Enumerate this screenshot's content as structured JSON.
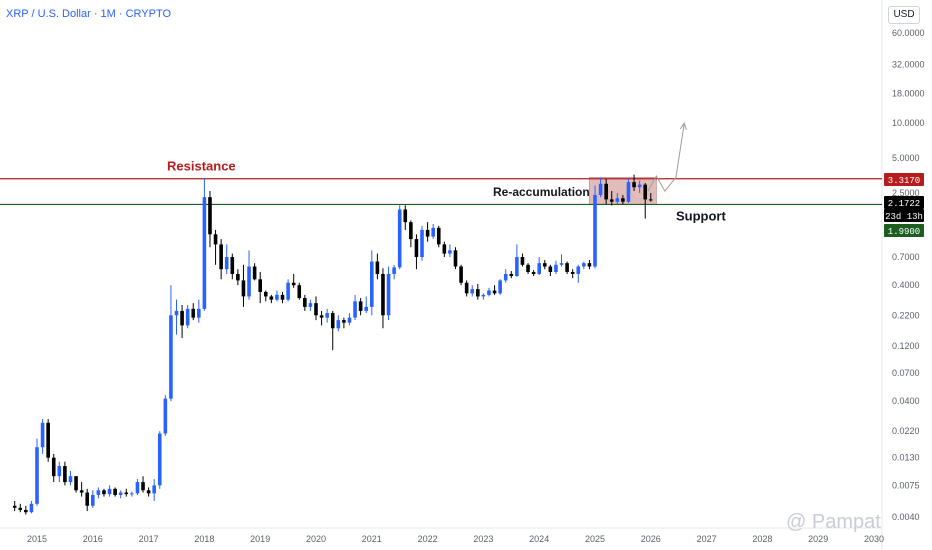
{
  "header": {
    "title": "XRP / U.S. Dollar · 1M · CRYPTO",
    "currency": "USD"
  },
  "watermark": "@ Pampat",
  "chart_data": {
    "type": "candlestick",
    "scale": "log",
    "yticks": [
      "60.0000",
      "32.0000",
      "18.0000",
      "10.0000",
      "5.0000",
      "3.3170",
      "2.5000",
      "2.1722",
      "1.9900",
      "0.7000",
      "0.4000",
      "0.2200",
      "0.1200",
      "0.0700",
      "0.0400",
      "0.0220",
      "0.0130",
      "0.0075",
      "0.0040"
    ],
    "ytick_values": [
      60,
      32,
      18,
      10,
      5,
      2.5,
      0.7,
      0.4,
      0.22,
      0.12,
      0.07,
      0.04,
      0.022,
      0.013,
      0.0075,
      0.004
    ],
    "ytick_labels": [
      "60.0000",
      "32.0000",
      "18.0000",
      "10.0000",
      "5.0000",
      "2.5000",
      "0.7000",
      "0.4000",
      "0.2200",
      "0.1200",
      "0.0700",
      "0.0400",
      "0.0220",
      "0.0130",
      "0.0075",
      "0.0040"
    ],
    "xticks": [
      "2015",
      "2016",
      "2017",
      "2018",
      "2019",
      "2020",
      "2021",
      "2022",
      "2023",
      "2024",
      "2025",
      "2026",
      "2027",
      "2028",
      "2029",
      "2030"
    ],
    "levels": {
      "resistance": {
        "label": "Resistance",
        "value": 3.317,
        "color": "#b71c1c"
      },
      "support": {
        "label": "Support",
        "value": 1.99,
        "color": "#1b5e20"
      }
    },
    "range_box": {
      "label": "Re-accumulation",
      "from": 2024.9,
      "to": 2026.1,
      "low": 1.99,
      "high": 3.4,
      "color": "#d7a6a3"
    },
    "price_badges": [
      {
        "text": "3.3170",
        "value": 3.317,
        "bg": "#b71c1c",
        "fg": "#ffffff"
      },
      {
        "text": "2.1722",
        "value": 2.1722,
        "bg": "#000000",
        "fg": "#ffffff"
      },
      {
        "text": "23d 13h",
        "value": 1.99,
        "bg": "#000000",
        "fg": "#ffffff"
      },
      {
        "text": "1.9900",
        "value": 1.99,
        "bg": "#1b5e20",
        "fg": "#ffffff"
      }
    ],
    "projection": [
      [
        2025.95,
        2.6
      ],
      [
        2026.1,
        3.5
      ],
      [
        2026.25,
        2.6
      ],
      [
        2026.45,
        3.4
      ],
      [
        2026.6,
        10
      ]
    ],
    "candles": [
      [
        2014.6,
        0.005,
        0.0055,
        0.0045,
        0.0048
      ],
      [
        2014.7,
        0.0048,
        0.0052,
        0.0044,
        0.0046
      ],
      [
        2014.8,
        0.0046,
        0.005,
        0.0042,
        0.0044
      ],
      [
        2014.9,
        0.0044,
        0.0055,
        0.0043,
        0.0052
      ],
      [
        2015.0,
        0.0052,
        0.019,
        0.005,
        0.016
      ],
      [
        2015.1,
        0.016,
        0.028,
        0.014,
        0.026
      ],
      [
        2015.2,
        0.026,
        0.028,
        0.012,
        0.013
      ],
      [
        2015.3,
        0.013,
        0.014,
        0.008,
        0.009
      ],
      [
        2015.4,
        0.009,
        0.012,
        0.008,
        0.011
      ],
      [
        2015.5,
        0.011,
        0.012,
        0.0075,
        0.008
      ],
      [
        2015.6,
        0.008,
        0.01,
        0.0075,
        0.009
      ],
      [
        2015.7,
        0.009,
        0.009,
        0.0065,
        0.0068
      ],
      [
        2015.8,
        0.0068,
        0.008,
        0.006,
        0.0065
      ],
      [
        2015.9,
        0.0065,
        0.007,
        0.0045,
        0.005
      ],
      [
        2016.0,
        0.005,
        0.0068,
        0.0048,
        0.0062
      ],
      [
        2016.1,
        0.0062,
        0.0072,
        0.0058,
        0.0068
      ],
      [
        2016.2,
        0.0068,
        0.007,
        0.006,
        0.0063
      ],
      [
        2016.3,
        0.0063,
        0.0075,
        0.006,
        0.007
      ],
      [
        2016.4,
        0.007,
        0.0072,
        0.006,
        0.0062
      ],
      [
        2016.5,
        0.0062,
        0.0068,
        0.0058,
        0.0065
      ],
      [
        2016.6,
        0.0065,
        0.007,
        0.006,
        0.0063
      ],
      [
        2016.7,
        0.0063,
        0.0066,
        0.006,
        0.0064
      ],
      [
        2016.8,
        0.0064,
        0.0085,
        0.0062,
        0.008
      ],
      [
        2016.9,
        0.008,
        0.009,
        0.0065,
        0.0068
      ],
      [
        2017.0,
        0.0068,
        0.0072,
        0.006,
        0.0064
      ],
      [
        2017.1,
        0.0064,
        0.0085,
        0.0055,
        0.0075
      ],
      [
        2017.2,
        0.0075,
        0.022,
        0.007,
        0.021
      ],
      [
        2017.3,
        0.021,
        0.045,
        0.02,
        0.042
      ],
      [
        2017.4,
        0.042,
        0.4,
        0.04,
        0.22
      ],
      [
        2017.5,
        0.22,
        0.3,
        0.15,
        0.24
      ],
      [
        2017.6,
        0.24,
        0.27,
        0.14,
        0.18
      ],
      [
        2017.7,
        0.18,
        0.27,
        0.17,
        0.25
      ],
      [
        2017.8,
        0.25,
        0.28,
        0.2,
        0.21
      ],
      [
        2017.9,
        0.21,
        0.3,
        0.19,
        0.25
      ],
      [
        2018.0,
        0.25,
        3.317,
        0.24,
        2.3
      ],
      [
        2018.1,
        2.3,
        2.6,
        0.85,
        1.1
      ],
      [
        2018.2,
        1.1,
        1.2,
        0.6,
        0.9
      ],
      [
        2018.3,
        0.9,
        1.0,
        0.45,
        0.55
      ],
      [
        2018.4,
        0.55,
        0.9,
        0.5,
        0.7
      ],
      [
        2018.5,
        0.7,
        0.75,
        0.45,
        0.5
      ],
      [
        2018.6,
        0.5,
        0.55,
        0.4,
        0.44
      ],
      [
        2018.7,
        0.44,
        0.6,
        0.26,
        0.32
      ],
      [
        2018.8,
        0.32,
        0.8,
        0.3,
        0.58
      ],
      [
        2018.9,
        0.58,
        0.62,
        0.44,
        0.45
      ],
      [
        2019.0,
        0.45,
        0.52,
        0.28,
        0.35
      ],
      [
        2019.1,
        0.35,
        0.36,
        0.29,
        0.32
      ],
      [
        2019.2,
        0.32,
        0.33,
        0.28,
        0.3
      ],
      [
        2019.3,
        0.3,
        0.36,
        0.29,
        0.33
      ],
      [
        2019.4,
        0.33,
        0.35,
        0.28,
        0.3
      ],
      [
        2019.5,
        0.3,
        0.45,
        0.29,
        0.42
      ],
      [
        2019.6,
        0.42,
        0.5,
        0.38,
        0.4
      ],
      [
        2019.7,
        0.4,
        0.42,
        0.3,
        0.31
      ],
      [
        2019.8,
        0.31,
        0.33,
        0.24,
        0.26
      ],
      [
        2019.9,
        0.26,
        0.3,
        0.24,
        0.28
      ],
      [
        2020.0,
        0.28,
        0.32,
        0.2,
        0.22
      ],
      [
        2020.1,
        0.22,
        0.24,
        0.18,
        0.21
      ],
      [
        2020.2,
        0.21,
        0.25,
        0.19,
        0.23
      ],
      [
        2020.3,
        0.23,
        0.24,
        0.11,
        0.17
      ],
      [
        2020.4,
        0.17,
        0.22,
        0.16,
        0.2
      ],
      [
        2020.5,
        0.2,
        0.21,
        0.17,
        0.19
      ],
      [
        2020.6,
        0.19,
        0.23,
        0.18,
        0.21
      ],
      [
        2020.7,
        0.21,
        0.33,
        0.2,
        0.29
      ],
      [
        2020.8,
        0.29,
        0.31,
        0.22,
        0.24
      ],
      [
        2020.9,
        0.24,
        0.32,
        0.23,
        0.26
      ],
      [
        2021.0,
        0.26,
        0.8,
        0.22,
        0.64
      ],
      [
        2021.1,
        0.64,
        0.75,
        0.45,
        0.5
      ],
      [
        2021.2,
        0.5,
        0.56,
        0.17,
        0.22
      ],
      [
        2021.3,
        0.22,
        0.58,
        0.2,
        0.5
      ],
      [
        2021.4,
        0.5,
        0.6,
        0.45,
        0.57
      ],
      [
        2021.5,
        0.57,
        1.96,
        0.55,
        1.8
      ],
      [
        2021.6,
        1.8,
        1.96,
        1.2,
        1.4
      ],
      [
        2021.7,
        1.4,
        1.45,
        0.85,
        1.0
      ],
      [
        2021.8,
        1.0,
        1.1,
        0.55,
        0.7
      ],
      [
        2021.9,
        0.7,
        1.3,
        0.65,
        1.2
      ],
      [
        2022.0,
        1.2,
        1.4,
        0.95,
        1.05
      ],
      [
        2022.1,
        1.05,
        1.35,
        1.0,
        1.25
      ],
      [
        2022.2,
        1.25,
        1.3,
        0.85,
        0.9
      ],
      [
        2022.3,
        0.9,
        0.95,
        0.7,
        0.75
      ],
      [
        2022.4,
        0.75,
        0.9,
        0.7,
        0.8
      ],
      [
        2022.5,
        0.8,
        0.85,
        0.55,
        0.58
      ],
      [
        2022.6,
        0.58,
        0.6,
        0.4,
        0.42
      ],
      [
        2022.7,
        0.42,
        0.44,
        0.32,
        0.34
      ],
      [
        2022.8,
        0.34,
        0.4,
        0.32,
        0.37
      ],
      [
        2022.9,
        0.37,
        0.41,
        0.3,
        0.32
      ],
      [
        2023.0,
        0.32,
        0.34,
        0.3,
        0.33
      ],
      [
        2023.1,
        0.33,
        0.38,
        0.32,
        0.36
      ],
      [
        2023.2,
        0.36,
        0.4,
        0.33,
        0.34
      ],
      [
        2023.3,
        0.34,
        0.45,
        0.33,
        0.44
      ],
      [
        2023.4,
        0.44,
        0.55,
        0.42,
        0.5
      ],
      [
        2023.5,
        0.5,
        0.53,
        0.46,
        0.48
      ],
      [
        2023.6,
        0.48,
        0.9,
        0.47,
        0.7
      ],
      [
        2023.7,
        0.7,
        0.75,
        0.58,
        0.6
      ],
      [
        2023.8,
        0.6,
        0.62,
        0.5,
        0.52
      ],
      [
        2023.9,
        0.52,
        0.54,
        0.48,
        0.5
      ],
      [
        2024.0,
        0.5,
        0.7,
        0.49,
        0.62
      ],
      [
        2024.1,
        0.62,
        0.66,
        0.55,
        0.58
      ],
      [
        2024.2,
        0.58,
        0.6,
        0.48,
        0.52
      ],
      [
        2024.3,
        0.52,
        0.65,
        0.5,
        0.6
      ],
      [
        2024.4,
        0.6,
        0.74,
        0.58,
        0.62
      ],
      [
        2024.5,
        0.62,
        0.64,
        0.5,
        0.52
      ],
      [
        2024.6,
        0.52,
        0.55,
        0.46,
        0.5
      ],
      [
        2024.7,
        0.5,
        0.6,
        0.42,
        0.58
      ],
      [
        2024.8,
        0.58,
        0.64,
        0.55,
        0.62
      ],
      [
        2024.9,
        0.62,
        0.66,
        0.55,
        0.58
      ],
      [
        2025.0,
        0.58,
        2.9,
        0.56,
        2.4
      ],
      [
        2025.1,
        2.4,
        3.4,
        2.3,
        3.0
      ],
      [
        2025.2,
        3.0,
        3.3,
        2.0,
        2.2
      ],
      [
        2025.3,
        2.2,
        2.6,
        1.95,
        2.1
      ],
      [
        2025.4,
        2.1,
        2.5,
        2.0,
        2.25
      ],
      [
        2025.5,
        2.25,
        2.4,
        2.0,
        2.1
      ],
      [
        2025.6,
        2.1,
        3.3,
        2.05,
        3.1
      ],
      [
        2025.7,
        3.1,
        3.6,
        2.6,
        2.8
      ],
      [
        2025.8,
        2.8,
        3.2,
        2.5,
        2.95
      ],
      [
        2025.9,
        2.95,
        3.05,
        1.5,
        2.2
      ],
      [
        2026.0,
        2.2,
        2.5,
        2.1,
        2.17
      ]
    ]
  }
}
